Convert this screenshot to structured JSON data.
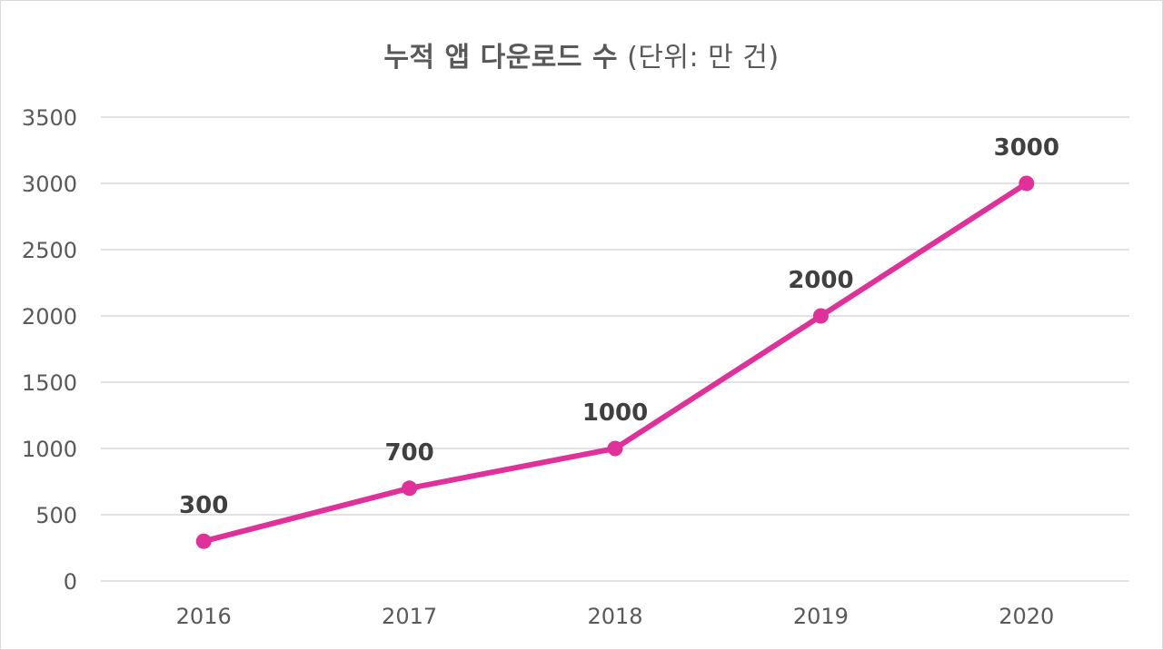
{
  "chart_data": {
    "type": "line",
    "title": "누적 앱 다운로드 수",
    "title_unit": "(단위: 만 건)",
    "categories": [
      "2016",
      "2017",
      "2018",
      "2019",
      "2020"
    ],
    "series": [
      {
        "name": "누적 앱 다운로드 수",
        "values": [
          300,
          700,
          1000,
          2000,
          3000
        ],
        "color": "#E0309A"
      }
    ],
    "yticks": [
      0,
      500,
      1000,
      1500,
      2000,
      2500,
      3000,
      3500
    ],
    "ylim": [
      0,
      3500
    ],
    "grid": true,
    "legend": "none",
    "data_labels": true,
    "xlabel": "",
    "ylabel": ""
  },
  "colors": {
    "line": "#E0309A",
    "grid": "#d9d9d9",
    "axis_text": "#595959",
    "label_text": "#404040"
  }
}
